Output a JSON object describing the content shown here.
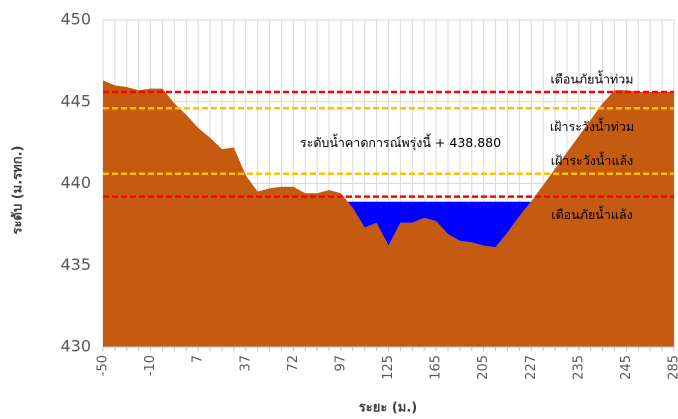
{
  "chart_data": {
    "type": "area",
    "x_label": "ระยะ (ม.)",
    "y_label": "ระดับ (ม.รทก.)",
    "categories": [
      "-50",
      null,
      null,
      null,
      "-10",
      null,
      null,
      null,
      "7",
      null,
      null,
      null,
      "37",
      null,
      null,
      null,
      "72",
      null,
      null,
      null,
      "97",
      null,
      null,
      null,
      "125",
      null,
      null,
      null,
      "165",
      null,
      null,
      null,
      "205",
      null,
      null,
      null,
      "227",
      null,
      null,
      null,
      "235",
      null,
      null,
      null,
      "245",
      null,
      null,
      null,
      "285"
    ],
    "series": [
      {
        "color": "#c55a11",
        "values": [
          446.3,
          446.0,
          445.9,
          445.7,
          445.8,
          445.8,
          444.9,
          444.2,
          443.4,
          442.8,
          442.1,
          442.2,
          440.5,
          439.5,
          439.7,
          439.8,
          439.8,
          439.4,
          439.4,
          439.6,
          439.4,
          438.5,
          437.3,
          437.6,
          436.2,
          437.6,
          437.6,
          437.9,
          437.7,
          436.9,
          436.5,
          436.4,
          436.2,
          436.1,
          437.0,
          438.0,
          438.9,
          439.9,
          440.9,
          441.9,
          442.9,
          443.9,
          444.9,
          445.7,
          445.7,
          445.6,
          445.6,
          445.6,
          445.6
        ]
      }
    ],
    "water": {
      "name": "ระดับน้ำคาดการณ์พรุ่งนี้ +",
      "value": 438.88,
      "value_label": "438.880",
      "color": "#0000ff"
    },
    "reference_lines": [
      {
        "name": "เตือนภัยน้ำท่วม",
        "value": 445.6,
        "color": "#ff0000"
      },
      {
        "name": "เฝ้าระวังน้ำท่วม",
        "value": 444.6,
        "color": "#ffc000"
      },
      {
        "name": "เฝ้าระวังน้ำแล้ง",
        "value": 440.6,
        "color": "#ffc000"
      },
      {
        "name": "เตือนภัยน้ำแล้ง",
        "value": 439.2,
        "color": "#ff0000"
      }
    ],
    "ylim": [
      430,
      450
    ],
    "yticks": [
      430,
      435,
      440,
      445,
      450
    ],
    "grid": true
  }
}
